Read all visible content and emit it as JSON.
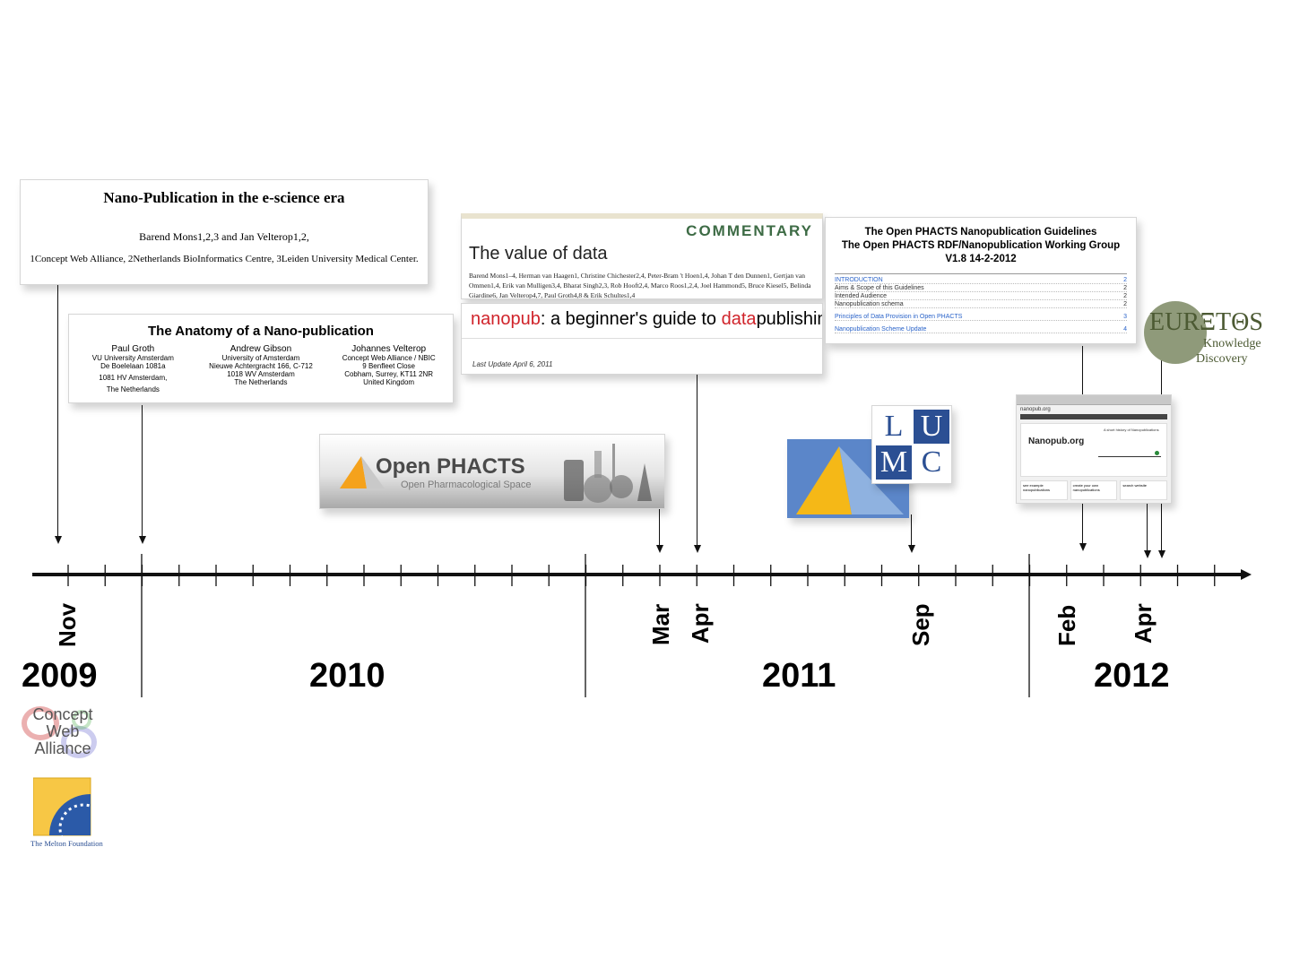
{
  "card_nanopub_era": {
    "title": "Nano-Publication in the e-science era",
    "authors": "Barend Mons1,2,3 and Jan Velterop1,2,",
    "affiliations": "1Concept Web Alliance, 2Netherlands BioInformatics Centre, 3Leiden University Medical Center."
  },
  "card_anatomy": {
    "title": "The Anatomy of a Nano-publication",
    "authors": [
      {
        "name": "Paul Groth",
        "lines": [
          "VU University Amsterdam",
          "De Boelelaan 1081a",
          "1081 HV  Amsterdam,",
          "The Netherlands"
        ]
      },
      {
        "name": "Andrew Gibson",
        "lines": [
          "University of Amsterdam",
          "Nieuwe Achtergracht 166, C-712",
          "1018 WV Amsterdam",
          "The Netherlands"
        ]
      },
      {
        "name": "Johannes Velterop",
        "lines": [
          "Concept Web Alliance / NBIC",
          "9 Benfleet Close",
          "Cobham, Surrey, KT11 2NR",
          "United Kingdom"
        ]
      }
    ]
  },
  "card_value_of_data": {
    "section_label": "COMMENTARY",
    "title": "The value of data",
    "authors": "Barend Mons1–4, Herman van Haagen1, Christine Chichester2,4, Peter-Bram 't Hoen1,4, Johan T den Dunnen1, Gertjan van Ommen1,4, Erik van Mulligen3,4, Bharat Singh2,3, Rob Hooft2,4, Marco Roos1,2,4, Joel Hammond5, Bruce Kiesel5, Belinda Giardine6, Jan Velterop4,7, Paul Groth4,8 & Erik Schultes1,4"
  },
  "card_beginners_guide": {
    "title_part1": "nanopub",
    "title_part2": ": a beginner's guide to ",
    "title_part3": "data",
    "title_part4": "publishing",
    "updated": "Last Update April 6, 2011"
  },
  "card_guidelines": {
    "title_line1": "The Open PHACTS Nanopublication Guidelines",
    "title_line2": "The Open PHACTS RDF/Nanopublication Working Group",
    "title_line3": "V1.8 14-2-2012",
    "toc": [
      {
        "label": "INTRODUCTION",
        "page": "2",
        "blue": true
      },
      {
        "label": "Aims & Scope of this Guidelines",
        "page": "2",
        "blue": false
      },
      {
        "label": "Intended Audience",
        "page": "2",
        "blue": false
      },
      {
        "label": "Nanopublication schema",
        "page": "2",
        "blue": false
      },
      {
        "label": "Principles of Data Provision in Open PHACTS",
        "page": "3",
        "blue": true
      },
      {
        "label": "Nanopublication Scheme Update",
        "page": "4",
        "blue": true
      }
    ]
  },
  "logo_open_phacts": {
    "name": "Open PHACTS",
    "tagline": "Open Pharmacological Space"
  },
  "logo_lumc": {
    "letters": [
      "L",
      "U",
      "M",
      "C"
    ]
  },
  "logo_euretos": {
    "name": "EURΞTΘS",
    "line1": "Knowledge",
    "line2": "Discovery"
  },
  "website": {
    "url": "nanopub.org",
    "title": "Nanopub.org",
    "history_label": "A short history of Nanopublications",
    "boxes": [
      "see example nanopublications",
      "create your own nanopublications",
      "search website"
    ]
  },
  "timeline": {
    "months": [
      "Nov",
      "Mar",
      "Apr",
      "Sep",
      "Feb",
      "Apr"
    ],
    "years": [
      "2009",
      "2010",
      "2011",
      "2012"
    ]
  },
  "logo_concept_web": {
    "lines": [
      "Concept",
      "Web",
      "Alliance"
    ]
  },
  "logo_melton": {
    "caption": "The Melton Foundation"
  },
  "colors": {
    "commentary_green": "#3d6b45",
    "nanopub_red": "#d0232a",
    "lumc_blue": "#2b4f93",
    "euretos_olive": "#8f9a7a",
    "euretos_text": "#4c5a33",
    "link_blue": "#2a63c9",
    "openphacts_orange": "#f5a21c"
  }
}
